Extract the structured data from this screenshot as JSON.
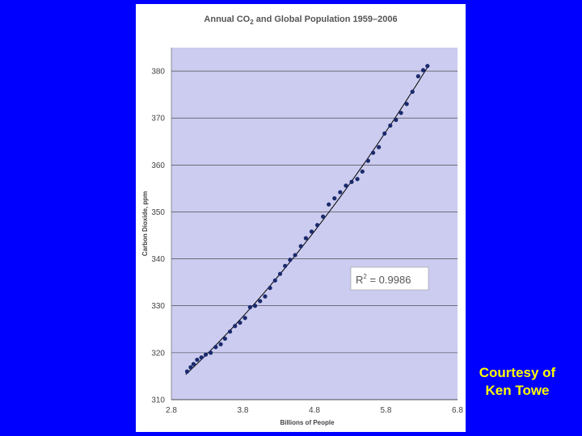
{
  "colors": {
    "background": "#0000ff",
    "plot_area": "#ccccf0",
    "points": "#1a2a6c",
    "trendline": "#000000",
    "credit": "#ffff00"
  },
  "chart_data": {
    "type": "scatter",
    "title_pre": "Annual CO",
    "title_sub": "2",
    "title_post": " and Global Population 1959–2006",
    "xlabel": "Billions of People",
    "ylabel": "Carbon Dioxide, ppm",
    "xlim": [
      2.8,
      6.8
    ],
    "ylim": [
      310,
      385
    ],
    "x_ticks": [
      "2.8",
      "3.8",
      "4.8",
      "5.8",
      "6.8"
    ],
    "y_ticks": [
      "310",
      "320",
      "330",
      "340",
      "350",
      "360",
      "370",
      "380"
    ],
    "grid": "horizontal",
    "trendline": "polynomial",
    "r2_pre": "R",
    "r2_sup": "2",
    "r2_post": " = 0.9986",
    "points": [
      [
        3.02,
        316.0
      ],
      [
        3.07,
        316.9
      ],
      [
        3.11,
        317.6
      ],
      [
        3.16,
        318.5
      ],
      [
        3.22,
        319.0
      ],
      [
        3.28,
        319.6
      ],
      [
        3.35,
        320.0
      ],
      [
        3.42,
        321.2
      ],
      [
        3.49,
        321.8
      ],
      [
        3.55,
        323.0
      ],
      [
        3.62,
        324.5
      ],
      [
        3.69,
        325.7
      ],
      [
        3.76,
        326.4
      ],
      [
        3.83,
        327.4
      ],
      [
        3.9,
        329.7
      ],
      [
        3.97,
        330.0
      ],
      [
        4.04,
        331.0
      ],
      [
        4.11,
        332.0
      ],
      [
        4.18,
        333.8
      ],
      [
        4.25,
        335.4
      ],
      [
        4.32,
        336.8
      ],
      [
        4.39,
        338.5
      ],
      [
        4.46,
        339.8
      ],
      [
        4.53,
        340.8
      ],
      [
        4.61,
        342.7
      ],
      [
        4.68,
        344.4
      ],
      [
        4.76,
        345.8
      ],
      [
        4.84,
        347.2
      ],
      [
        4.92,
        349.0
      ],
      [
        5.0,
        351.6
      ],
      [
        5.08,
        352.9
      ],
      [
        5.16,
        354.2
      ],
      [
        5.24,
        355.6
      ],
      [
        5.32,
        356.4
      ],
      [
        5.4,
        357.0
      ],
      [
        5.47,
        358.6
      ],
      [
        5.55,
        360.9
      ],
      [
        5.62,
        362.6
      ],
      [
        5.7,
        363.8
      ],
      [
        5.78,
        366.7
      ],
      [
        5.86,
        368.4
      ],
      [
        5.94,
        369.6
      ],
      [
        6.01,
        371.1
      ],
      [
        6.09,
        373.0
      ],
      [
        6.17,
        375.6
      ],
      [
        6.25,
        378.9
      ],
      [
        6.32,
        380.2
      ],
      [
        6.38,
        381.1
      ]
    ]
  },
  "credit": {
    "line1": "Courtesy of",
    "line2": "Ken Towe"
  }
}
